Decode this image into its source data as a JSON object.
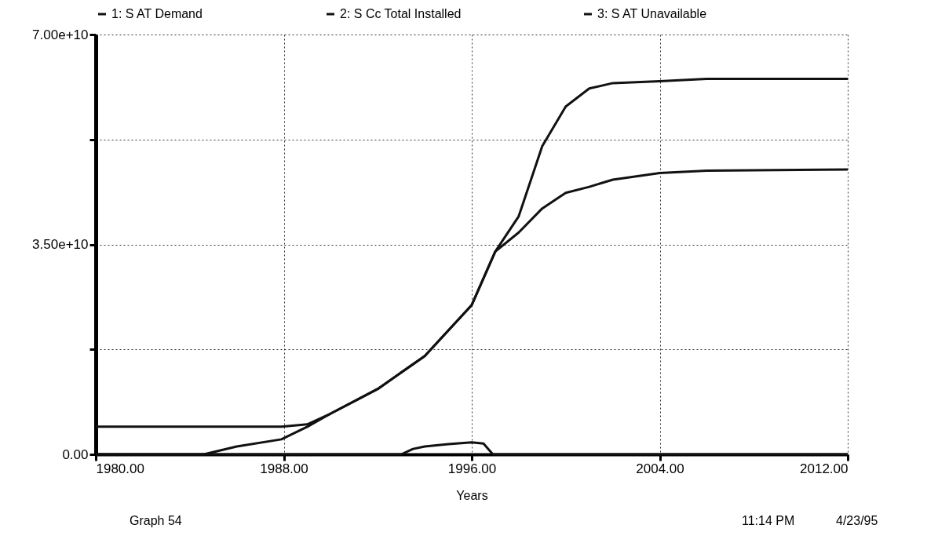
{
  "chart_data": {
    "type": "line",
    "xlabel": "Years",
    "xlim": [
      1980,
      2012
    ],
    "xticks": [
      {
        "value": 1980,
        "label": "1980.00"
      },
      {
        "value": 1988,
        "label": "1988.00"
      },
      {
        "value": 1996,
        "label": "1996.00"
      },
      {
        "value": 2004,
        "label": "2004.00"
      },
      {
        "value": 2012,
        "label": "2012.00"
      }
    ],
    "ylim": [
      0,
      70000000000
    ],
    "yticks": [
      {
        "value": 0,
        "label": "0.00"
      },
      {
        "value": 17500000000,
        "label": null
      },
      {
        "value": 35000000000,
        "label": "3.50e+10"
      },
      {
        "value": 52500000000,
        "label": null
      },
      {
        "value": 70000000000,
        "label": "7.00e+10"
      }
    ],
    "grid": true,
    "legend": "top",
    "line_style": "solid",
    "series": [
      {
        "name": "1: S AT Demand",
        "color": "#111111",
        "x": [
          1980,
          1984.6,
          1986,
          1987.9,
          1989,
          1990,
          1992,
          1994,
          1996,
          1997,
          1998,
          1999,
          2000,
          2001,
          2002,
          2004,
          2006,
          2012
        ],
        "values": [
          0,
          0,
          1300000000,
          2500000000,
          4600000000,
          6800000000,
          10900000000,
          16400000000,
          24900000000,
          33800000000,
          37000000000,
          41000000000,
          43600000000,
          44600000000,
          45800000000,
          46900000000,
          47300000000,
          47500000000
        ]
      },
      {
        "name": "2: S Cc Total Installed",
        "color": "#111111",
        "x": [
          1980,
          1987.9,
          1989,
          1990,
          1992,
          1994,
          1996,
          1997,
          1998,
          1999,
          2000,
          2001,
          2002,
          2004,
          2006,
          2012
        ],
        "values": [
          4600000000,
          4600000000,
          5000000000,
          6800000000,
          10900000000,
          16400000000,
          24900000000,
          33800000000,
          39700000000,
          51400000000,
          58000000000,
          61000000000,
          61900000000,
          62200000000,
          62600000000,
          62600000000
        ]
      },
      {
        "name": "3: S AT Unavailable",
        "color": "#111111",
        "x": [
          1980,
          1993,
          1993.5,
          1994,
          1995,
          1996,
          1996.5,
          1996.9,
          2012
        ],
        "values": [
          0,
          0,
          900000000,
          1300000000,
          1700000000,
          2000000000,
          1800000000,
          0,
          0
        ]
      }
    ],
    "annotations": [
      "Graph 54",
      "11:14 PM",
      "4/23/95"
    ]
  }
}
